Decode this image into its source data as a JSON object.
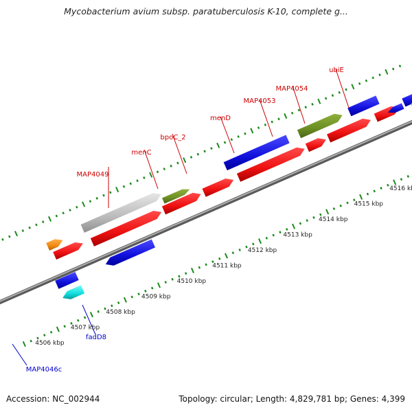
{
  "title": "Mycobacterium avium subsp. paratuberculosis K-10, complete g...",
  "accession": "Accession: NC_002944",
  "summary": "Topology: circular; Length: 4,829,781 bp; Genes: 4,399",
  "scale_ticks": [
    {
      "label": "4506 kbp",
      "kbp": 4506
    },
    {
      "label": "4507 kbp",
      "kbp": 4507
    },
    {
      "label": "4508 kbp",
      "kbp": 4508
    },
    {
      "label": "4509 kbp",
      "kbp": 4509
    },
    {
      "label": "4510 kbp",
      "kbp": 4510
    },
    {
      "label": "4511 kbp",
      "kbp": 4511
    },
    {
      "label": "4512 kbp",
      "kbp": 4512
    },
    {
      "label": "4513 kbp",
      "kbp": 4513
    },
    {
      "label": "4514 kbp",
      "kbp": 4514
    },
    {
      "label": "4515 kbp",
      "kbp": 4515
    },
    {
      "label": "4516 kbp",
      "kbp": 4516
    }
  ],
  "gene_labels": [
    {
      "name": "MAP4049",
      "strand": "forward",
      "color": "#cc0000"
    },
    {
      "name": "menC",
      "strand": "forward",
      "color": "#cc0000"
    },
    {
      "name": "bpoC_2",
      "strand": "forward",
      "color": "#cc0000"
    },
    {
      "name": "menD",
      "strand": "forward",
      "color": "#cc0000"
    },
    {
      "name": "MAP4053",
      "strand": "forward",
      "color": "#cc0000"
    },
    {
      "name": "MAP4054",
      "strand": "forward",
      "color": "#cc0000"
    },
    {
      "name": "ubiE",
      "strand": "forward",
      "color": "#cc0000"
    },
    {
      "name": "fadD8",
      "strand": "reverse",
      "color": "#0000cc"
    },
    {
      "name": "MAP4046c",
      "strand": "reverse",
      "color": "#0000cc"
    }
  ],
  "feature_colors": {
    "forward_cds": "#ee1111",
    "reverse_cds": "#1111dd",
    "rna": "#bbbbbb",
    "olive": "#6b8e23",
    "cyan": "#11dddd",
    "orange": "#ee8811",
    "backbone": "#888888",
    "ticks": "#1a8a1a"
  }
}
